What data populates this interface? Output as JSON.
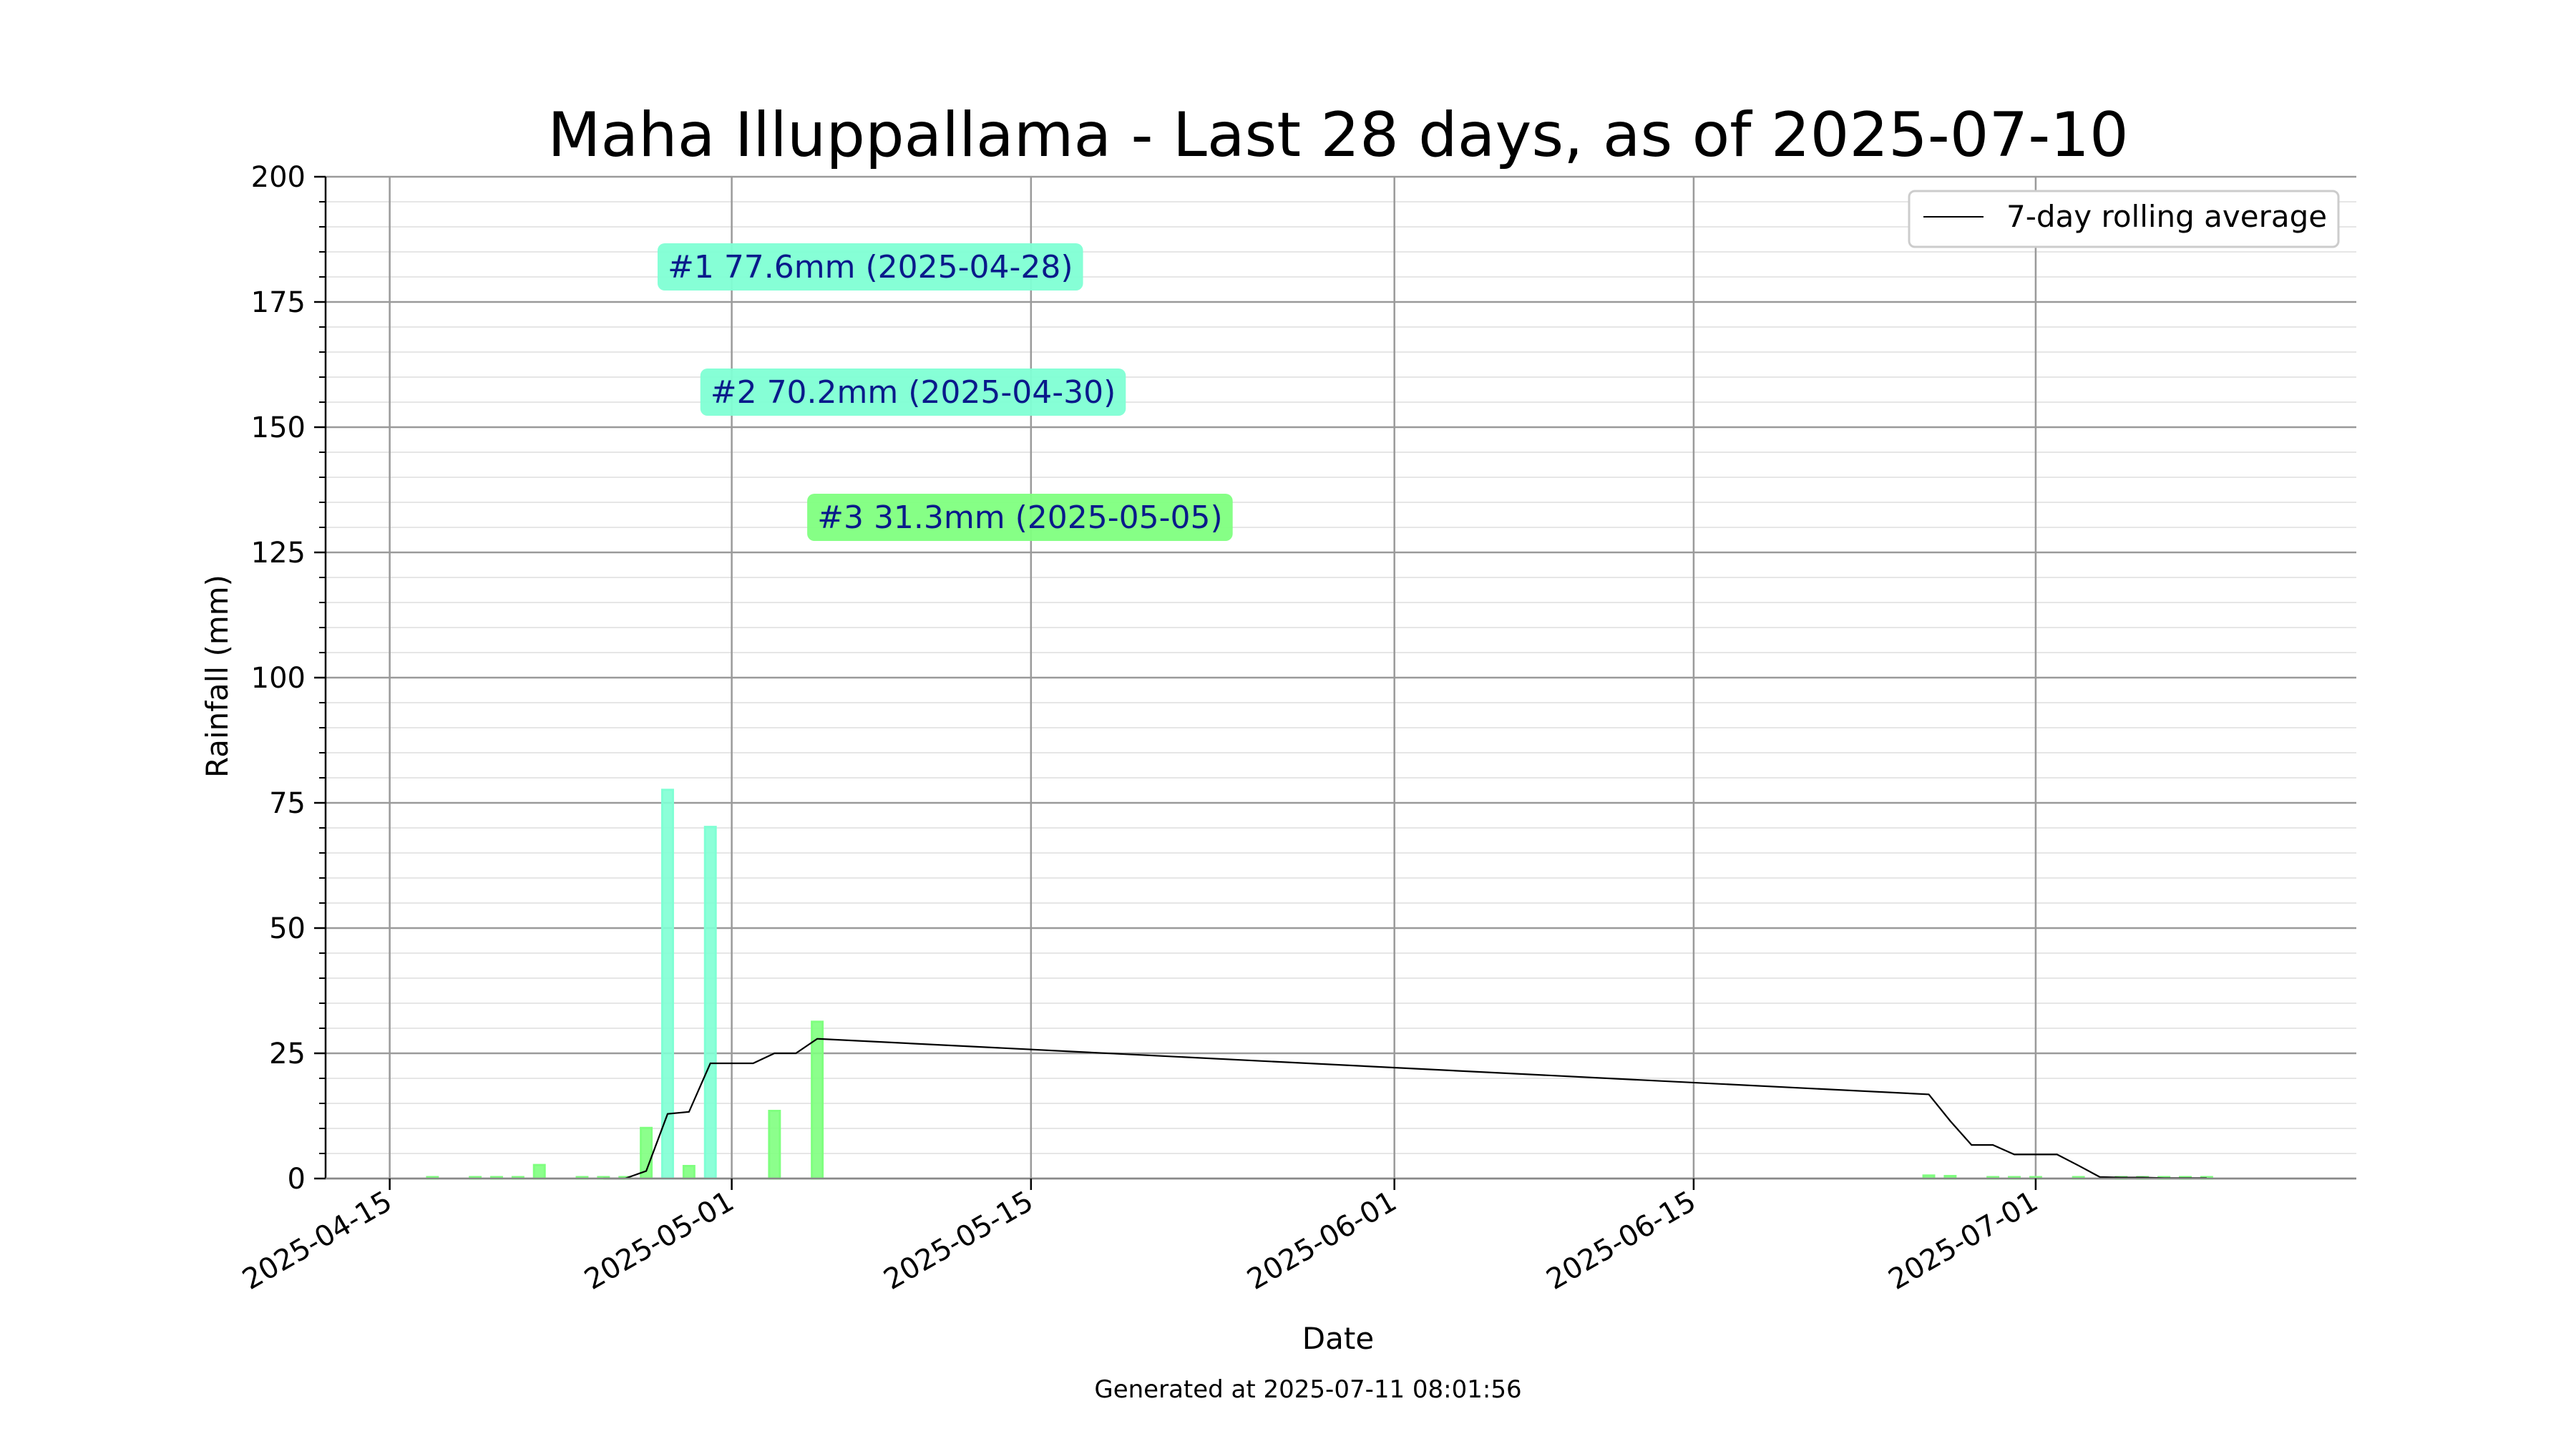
{
  "chart_data": {
    "type": "bar",
    "title": "Maha Illuppallama - Last 28 days, as of 2025-07-10",
    "xlabel": "Date",
    "ylabel": "Rainfall (mm)",
    "footer": "Generated at 2025-07-11 08:01:56",
    "ylim": [
      0,
      200
    ],
    "xlim": [
      "2025-04-12",
      "2025-07-16"
    ],
    "yticks_major": [
      0,
      25,
      50,
      75,
      100,
      125,
      150,
      175,
      200
    ],
    "yticks_minor_step": 5,
    "xticks": [
      "2025-04-15",
      "2025-05-01",
      "2025-05-15",
      "2025-06-01",
      "2025-06-15",
      "2025-07-01"
    ],
    "grid": true,
    "legend": {
      "position": "top-right",
      "entries": [
        "7-day rolling average"
      ]
    },
    "series": [
      {
        "kind": "bar",
        "x": [
          "2025-04-17",
          "2025-04-19",
          "2025-04-20",
          "2025-04-21",
          "2025-04-22",
          "2025-04-24",
          "2025-04-25",
          "2025-04-26",
          "2025-04-27",
          "2025-04-28",
          "2025-04-29",
          "2025-04-30",
          "2025-05-03",
          "2025-05-05",
          "2025-06-26",
          "2025-06-27",
          "2025-06-29",
          "2025-06-30",
          "2025-07-01",
          "2025-07-03",
          "2025-07-05",
          "2025-07-06",
          "2025-07-07",
          "2025-07-08",
          "2025-07-09"
        ],
        "values": [
          0.1,
          0.1,
          0.1,
          0.1,
          2.7,
          0.1,
          0.1,
          0.1,
          10.1,
          77.6,
          2.5,
          70.2,
          13.5,
          31.3,
          0.6,
          0.5,
          0.1,
          0.1,
          0.1,
          0.1,
          0.1,
          0.1,
          0.1,
          0.1,
          0.1
        ],
        "highlight_color": "#7fffd4",
        "color": "#7fff7f"
      },
      {
        "kind": "line",
        "name": "7-day rolling average",
        "color": "#000000",
        "x": [
          "2025-04-25",
          "2025-04-26",
          "2025-04-27",
          "2025-04-28",
          "2025-04-29",
          "2025-04-30",
          "2025-05-01",
          "2025-05-02",
          "2025-05-03",
          "2025-05-04",
          "2025-05-05",
          "2025-06-26",
          "2025-06-27",
          "2025-06-28",
          "2025-06-29",
          "2025-06-30",
          "2025-07-01",
          "2025-07-02",
          "2025-07-03",
          "2025-07-04",
          "2025-07-05",
          "2025-07-06",
          "2025-07-07",
          "2025-07-08",
          "2025-07-09"
        ],
        "values": [
          0.0,
          0.0,
          1.5,
          12.9,
          13.3,
          23.0,
          23.0,
          23.0,
          25.0,
          25.0,
          27.9,
          16.8,
          11.5,
          6.7,
          6.7,
          4.8,
          4.8,
          4.8,
          2.6,
          0.3,
          0.2,
          0.2,
          0.1,
          0.1,
          0.1
        ]
      }
    ],
    "annotations": [
      {
        "text": "#1 77.6mm (2025-04-28)",
        "x": "2025-04-28",
        "y": 182,
        "color": "#7fffd4"
      },
      {
        "text": "#2 70.2mm (2025-04-30)",
        "x": "2025-04-30",
        "y": 157,
        "color": "#7fffd4"
      },
      {
        "text": "#3 31.3mm (2025-05-05)",
        "x": "2025-05-05",
        "y": 132,
        "color": "#7fff7f"
      }
    ]
  }
}
